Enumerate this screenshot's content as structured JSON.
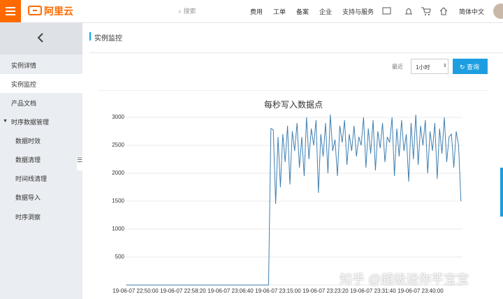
{
  "header": {
    "logo": "阿里云",
    "search": "搜索",
    "nav": [
      "费用",
      "工单",
      "备案",
      "企业",
      "支持与服务"
    ],
    "language": "简体中文"
  },
  "sidebar": {
    "items": [
      "实例详情",
      "实例监控",
      "产品文档",
      "时序数据管理"
    ],
    "subitems": [
      "数据时效",
      "数据清理",
      "时间线清理",
      "数据导入",
      "时序洞察"
    ]
  },
  "page_title": "实例监控",
  "controls": {
    "recent_label": "最近",
    "range": "1小时",
    "button": "查询"
  },
  "watermark": "知乎 @超级迷你芊宝宝",
  "chart_data": {
    "type": "line",
    "title": "每秒写入数据点",
    "categories": [
      null,
      null,
      null,
      null,
      "19-06-07 22:50:00",
      null,
      null,
      null,
      null,
      null,
      null,
      null,
      null,
      null,
      null,
      null,
      null,
      null,
      null,
      null,
      null,
      null,
      null,
      null,
      "19-06-07 22:58:20",
      null,
      null,
      null,
      null,
      null,
      null,
      null,
      null,
      null,
      null,
      null,
      null,
      null,
      null,
      null,
      null,
      null,
      null,
      null,
      "19-06-07 23:06:40",
      null,
      null,
      null,
      null,
      null,
      null,
      null,
      null,
      null,
      null,
      null,
      null,
      null,
      null,
      null,
      null,
      null,
      null,
      null,
      "19-06-07 23:15:00",
      null,
      null,
      null,
      null,
      null,
      null,
      null,
      null,
      null,
      null,
      null,
      null,
      null,
      null,
      null,
      null,
      null,
      null,
      null,
      "19-06-07 23:23:20",
      null,
      null,
      null,
      null,
      null,
      null,
      null,
      null,
      null,
      null,
      null,
      null,
      null,
      null,
      null,
      null,
      null,
      null,
      null,
      "19-06-07 23:31:40",
      null,
      null,
      null,
      null,
      null,
      null,
      null,
      null,
      null,
      null,
      null,
      null,
      null,
      null,
      null,
      null,
      null,
      null,
      null,
      "19-06-07 23:40:00",
      null,
      null,
      null,
      null,
      null,
      null,
      null,
      null,
      null,
      null,
      null,
      null,
      null,
      null,
      null,
      null,
      null
    ],
    "series": [
      {
        "color": "#3f7fb1",
        "values": [
          0,
          0,
          0,
          0,
          0,
          0,
          0,
          0,
          0,
          0,
          0,
          0,
          0,
          0,
          0,
          0,
          0,
          0,
          0,
          0,
          0,
          0,
          0,
          0,
          0,
          0,
          0,
          0,
          0,
          0,
          0,
          0,
          0,
          0,
          0,
          0,
          0,
          0,
          0,
          0,
          0,
          0,
          0,
          0,
          0,
          0,
          0,
          0,
          0,
          0,
          0,
          0,
          0,
          0,
          0,
          0,
          0,
          0,
          0,
          0,
          0,
          2800,
          2780,
          1450,
          2650,
          1750,
          2700,
          2200,
          2850,
          1800,
          2750,
          2400,
          2900,
          2100,
          2650,
          1950,
          3000,
          2250,
          2800,
          2500,
          2950,
          1650,
          2700,
          2300,
          2900,
          2000,
          3050,
          2400,
          2600,
          1950,
          2850,
          2550,
          2950,
          2150,
          2700,
          2400,
          2850,
          2300,
          2650,
          2500,
          3000,
          2100,
          2800,
          2350,
          2950,
          2050,
          2750,
          2450,
          2900,
          2200,
          2650,
          2550,
          3000,
          1950,
          2800,
          2300,
          2950,
          2400,
          2700,
          1850,
          2900,
          2250,
          3050,
          2150,
          2850,
          2500,
          2950,
          2000,
          2750,
          2400,
          2900,
          1900,
          2800,
          2350,
          3000,
          2200,
          2650,
          2700,
          2100,
          2750,
          2500,
          1500
        ]
      }
    ],
    "ylim": [
      0,
      3000
    ],
    "yticks": [
      500,
      1000,
      1500,
      2000,
      2500,
      3000
    ],
    "grid": true
  }
}
